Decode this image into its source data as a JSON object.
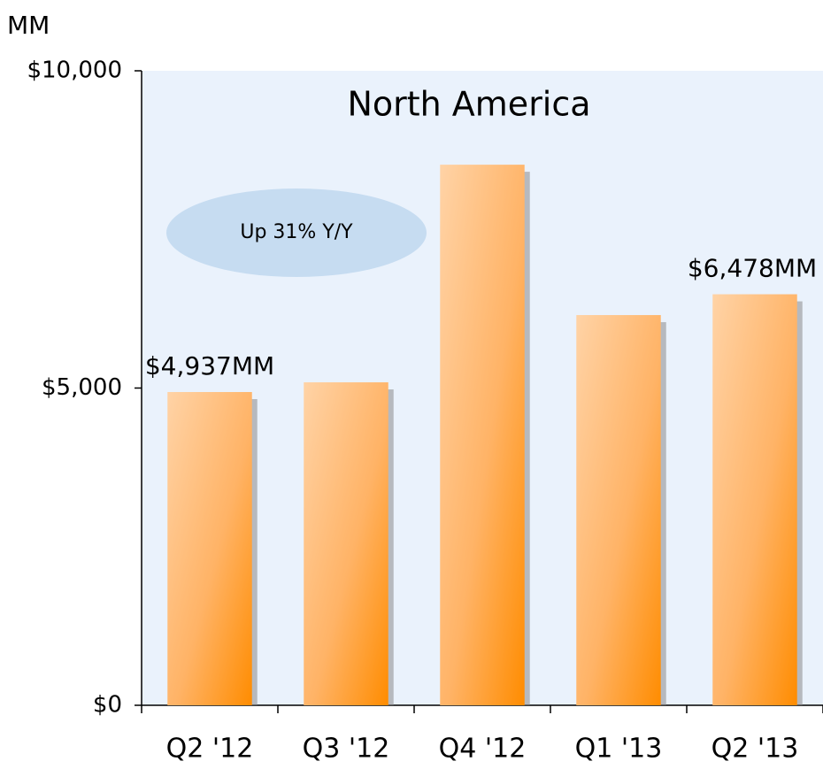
{
  "chart_data": {
    "type": "bar",
    "title": "North America",
    "y_label": "MM",
    "annotation": "Up 31% Y/Y",
    "categories": [
      "Q2 '12",
      "Q3 '12",
      "Q4 '12",
      "Q1 '13",
      "Q2 '13"
    ],
    "values": [
      4937,
      5090,
      8520,
      6150,
      6478
    ],
    "value_labels": [
      "$4,937MM",
      null,
      null,
      null,
      "$6,478MM"
    ],
    "color": "#ff8c00",
    "ylim": [
      0,
      10000
    ],
    "yticks": [
      {
        "value": 0,
        "label": "$0"
      },
      {
        "value": 5000,
        "label": "$5,000"
      },
      {
        "value": 10000,
        "label": "$10,000"
      }
    ]
  }
}
